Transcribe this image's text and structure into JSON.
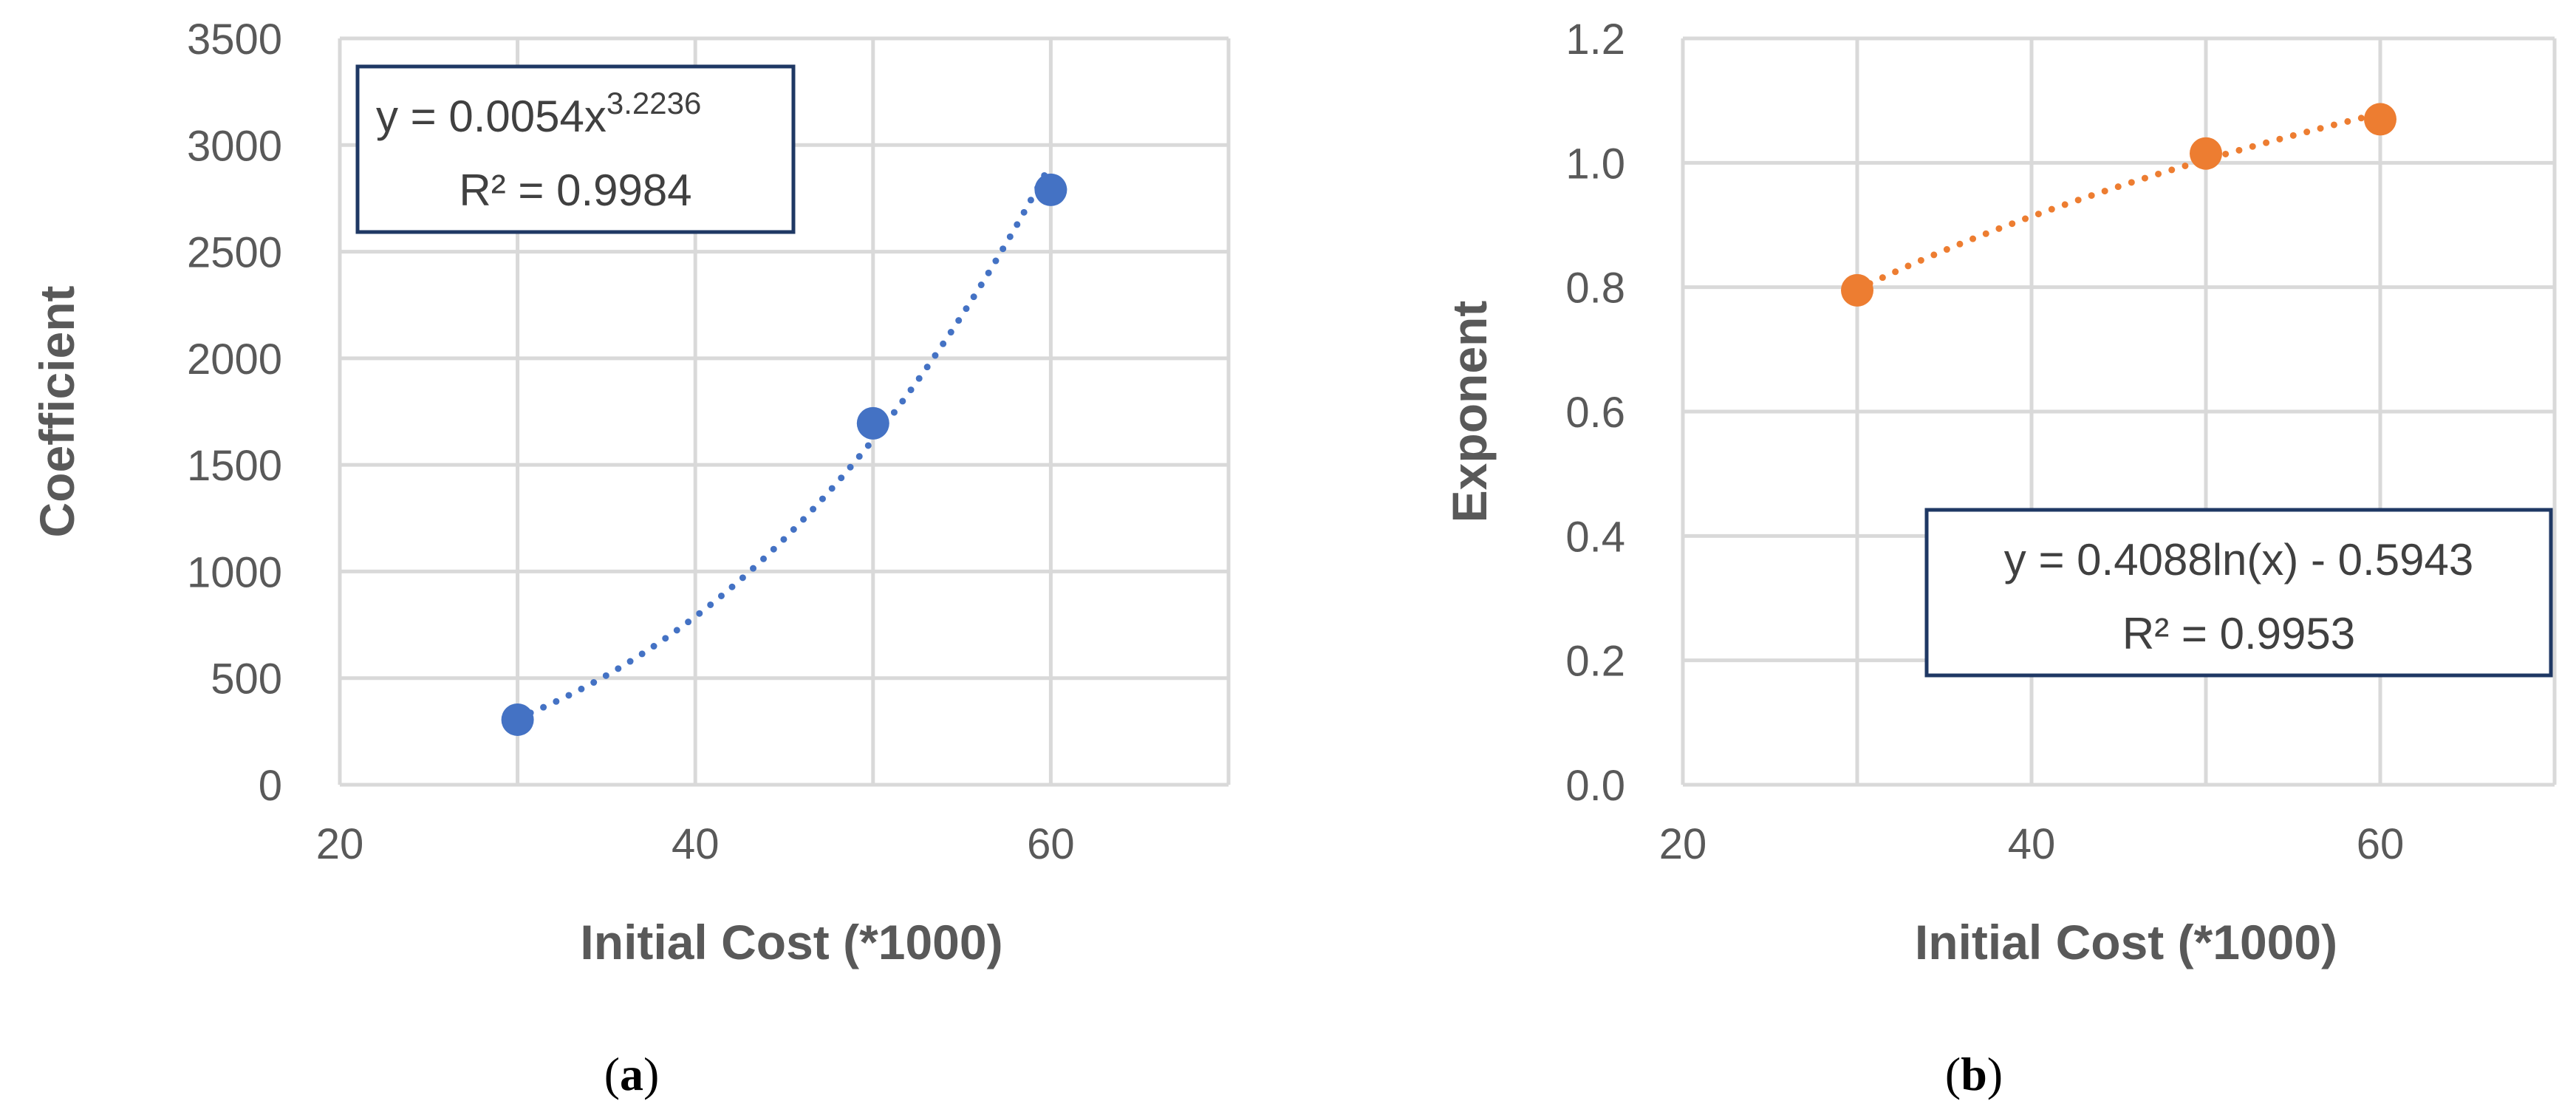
{
  "chart_data": [
    {
      "type": "scatter",
      "panel_label": "a",
      "xlabel": "Initial Cost (*1000)",
      "ylabel": "Coefficient",
      "xlim": [
        20,
        70
      ],
      "ylim": [
        0,
        3500
      ],
      "xticks": [
        "20",
        "40",
        "60"
      ],
      "yticks": [
        "0",
        "500",
        "1000",
        "1500",
        "2000",
        "2500",
        "3000",
        "3500"
      ],
      "grid": true,
      "color": "#4472c4",
      "points": [
        {
          "x": 30,
          "y": 305
        },
        {
          "x": 50,
          "y": 1695
        },
        {
          "x": 60,
          "y": 2790
        }
      ],
      "trendline": {
        "kind": "power",
        "a": 0.0054,
        "b": 3.2236,
        "style": "dotted",
        "equation_prefix": "y = 0.0054x",
        "equation_exponent": "3.2236",
        "r_squared": "R² = 0.9984",
        "box_position": "top-left"
      }
    },
    {
      "type": "scatter",
      "panel_label": "b",
      "xlabel": "Initial Cost (*1000)",
      "ylabel": "Exponent",
      "xlim": [
        20,
        70
      ],
      "ylim": [
        0,
        1.2
      ],
      "xticks": [
        "20",
        "40",
        "60"
      ],
      "yticks": [
        "0.0",
        "0.2",
        "0.4",
        "0.6",
        "0.8",
        "1.0",
        "1.2"
      ],
      "grid": true,
      "color": "#ed7d31",
      "points": [
        {
          "x": 30,
          "y": 0.795
        },
        {
          "x": 50,
          "y": 1.015
        },
        {
          "x": 60,
          "y": 1.07
        }
      ],
      "trendline": {
        "kind": "log",
        "a": 0.4088,
        "b": -0.5943,
        "style": "dotted",
        "equation": "y = 0.4088ln(x) - 0.5943",
        "r_squared": "R² = 0.9953",
        "box_position": "bottom-right"
      }
    }
  ],
  "equation_box_border": "#1f3864"
}
